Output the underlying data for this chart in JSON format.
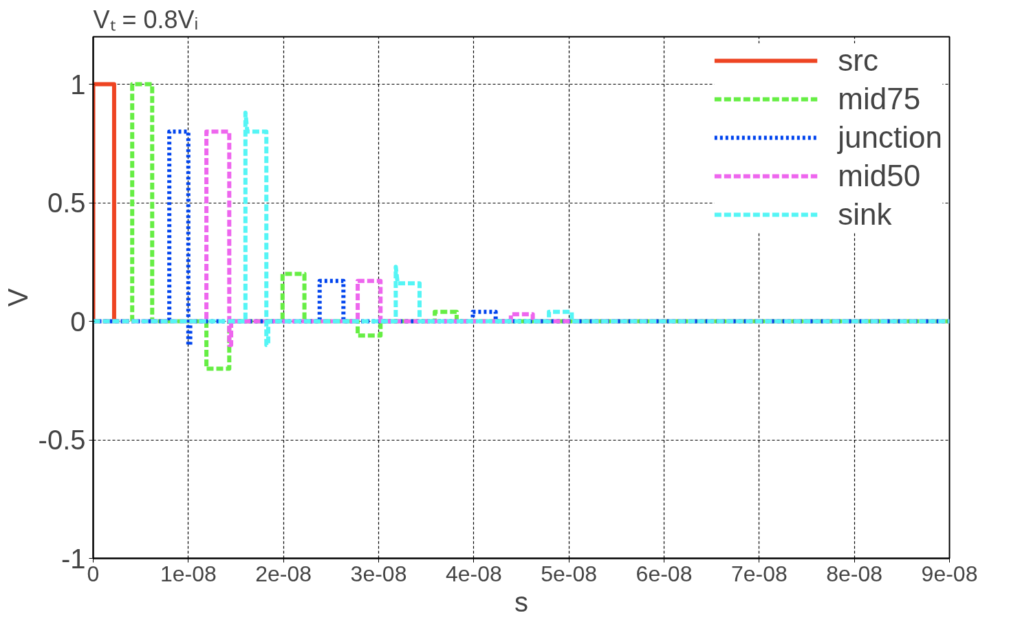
{
  "chart_data": {
    "type": "line",
    "xlabel": "s",
    "ylabel": "V",
    "annotations": [
      "Vₜ = 0.8Vᵢ"
    ],
    "xlim": [
      0,
      9e-08
    ],
    "ylim": [
      -1,
      1.2
    ],
    "xticks": [
      0,
      {
        "value": 1e-08,
        "label": "1e-08"
      },
      {
        "value": 2e-08,
        "label": "2e-08"
      },
      {
        "value": 3e-08,
        "label": "3e-08"
      },
      {
        "value": 4e-08,
        "label": "4e-08"
      },
      {
        "value": 5e-08,
        "label": "5e-08"
      },
      {
        "value": 6e-08,
        "label": "6e-08"
      },
      {
        "value": 7e-08,
        "label": "7e-08"
      },
      {
        "value": 8e-08,
        "label": "8e-08"
      },
      {
        "value": 9e-08,
        "label": "9e-08"
      }
    ],
    "yticks": [
      -1,
      -0.5,
      0,
      0.5,
      1
    ],
    "grid": true,
    "legend": "top right",
    "series": [
      {
        "name": "src",
        "color": "#ee4422",
        "line_style": "solid",
        "x": [
          0,
          0,
          2.2e-09,
          2.2e-09
        ],
        "values": [
          0,
          1,
          1,
          0
        ]
      },
      {
        "name": "mid75",
        "color": "#66ee44",
        "line_style": "dashed",
        "x": [
          0,
          4.1e-09,
          4.1e-09,
          6.2e-09,
          6.2e-09,
          1.19e-08,
          1.19e-08,
          1.43e-08,
          1.43e-08,
          1.99e-08,
          1.99e-08,
          2.22e-08,
          2.22e-08,
          2.78e-08,
          2.78e-08,
          3.02e-08,
          3.02e-08,
          3.59e-08,
          3.59e-08,
          3.82e-08,
          3.82e-08,
          9e-08
        ],
        "values": [
          0,
          0,
          1,
          1,
          0,
          0,
          -0.2,
          -0.2,
          0,
          0,
          0.2,
          0.2,
          0,
          0,
          -0.06,
          -0.06,
          0,
          0,
          0.04,
          0.04,
          0,
          0
        ]
      },
      {
        "name": "junction",
        "color": "#0044ee",
        "line_style": "dotted",
        "x": [
          0,
          8e-09,
          8e-09,
          1e-08,
          1e-08,
          1.02e-08,
          1.02e-08,
          2.38e-08,
          2.38e-08,
          2.63e-08,
          2.63e-08,
          3.99e-08,
          3.99e-08,
          4.23e-08,
          4.23e-08,
          9e-08
        ],
        "values": [
          0,
          0,
          0.8,
          0.8,
          -0.1,
          -0.1,
          0,
          0,
          0.17,
          0.17,
          0,
          0,
          0.04,
          0.04,
          0,
          0
        ]
      },
      {
        "name": "mid50",
        "color": "#ee66ee",
        "line_style": "dashed",
        "x": [
          0,
          1.19e-08,
          1.19e-08,
          1.43e-08,
          1.43e-08,
          1.45e-08,
          1.45e-08,
          2.78e-08,
          2.78e-08,
          3.02e-08,
          3.02e-08,
          4.39e-08,
          4.39e-08,
          4.62e-08,
          4.62e-08,
          9e-08
        ],
        "values": [
          0,
          0,
          0.8,
          0.8,
          -0.1,
          -0.1,
          0,
          0,
          0.17,
          0.17,
          0,
          0,
          0.03,
          0.03,
          0,
          0
        ]
      },
      {
        "name": "sink",
        "color": "#55f5f5",
        "line_style": "dashed",
        "x": [
          0,
          1.6e-08,
          1.6e-08,
          1.62e-08,
          1.82e-08,
          1.82e-08,
          1.84e-08,
          1.84e-08,
          3.18e-08,
          3.18e-08,
          3.2e-08,
          3.43e-08,
          3.43e-08,
          4.79e-08,
          4.79e-08,
          5.03e-08,
          5.03e-08,
          9e-08
        ],
        "values": [
          0,
          0,
          0.88,
          0.8,
          0.8,
          -0.1,
          -0.1,
          0,
          0,
          0.23,
          0.16,
          0.16,
          0,
          0,
          0.04,
          0.04,
          0,
          0
        ]
      }
    ]
  }
}
